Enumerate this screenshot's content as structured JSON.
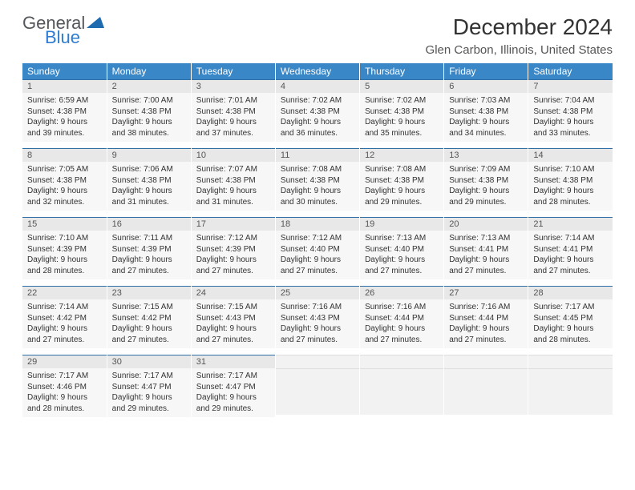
{
  "logo": {
    "word1": "General",
    "word2": "Blue",
    "tri_color": "#1f6bb0"
  },
  "title": "December 2024",
  "subtitle": "Glen Carbon, Illinois, United States",
  "colors": {
    "header_bg": "#3a87c8",
    "header_text": "#ffffff",
    "daynum_bg": "#e8e8e8",
    "daynum_border": "#2e6fa8",
    "daybody_bg": "#f7f7f7",
    "text": "#333333"
  },
  "day_headers": [
    "Sunday",
    "Monday",
    "Tuesday",
    "Wednesday",
    "Thursday",
    "Friday",
    "Saturday"
  ],
  "weeks": [
    [
      {
        "n": "1",
        "sr": "6:59 AM",
        "ss": "4:38 PM",
        "dl": "9 hours and 39 minutes."
      },
      {
        "n": "2",
        "sr": "7:00 AM",
        "ss": "4:38 PM",
        "dl": "9 hours and 38 minutes."
      },
      {
        "n": "3",
        "sr": "7:01 AM",
        "ss": "4:38 PM",
        "dl": "9 hours and 37 minutes."
      },
      {
        "n": "4",
        "sr": "7:02 AM",
        "ss": "4:38 PM",
        "dl": "9 hours and 36 minutes."
      },
      {
        "n": "5",
        "sr": "7:02 AM",
        "ss": "4:38 PM",
        "dl": "9 hours and 35 minutes."
      },
      {
        "n": "6",
        "sr": "7:03 AM",
        "ss": "4:38 PM",
        "dl": "9 hours and 34 minutes."
      },
      {
        "n": "7",
        "sr": "7:04 AM",
        "ss": "4:38 PM",
        "dl": "9 hours and 33 minutes."
      }
    ],
    [
      {
        "n": "8",
        "sr": "7:05 AM",
        "ss": "4:38 PM",
        "dl": "9 hours and 32 minutes."
      },
      {
        "n": "9",
        "sr": "7:06 AM",
        "ss": "4:38 PM",
        "dl": "9 hours and 31 minutes."
      },
      {
        "n": "10",
        "sr": "7:07 AM",
        "ss": "4:38 PM",
        "dl": "9 hours and 31 minutes."
      },
      {
        "n": "11",
        "sr": "7:08 AM",
        "ss": "4:38 PM",
        "dl": "9 hours and 30 minutes."
      },
      {
        "n": "12",
        "sr": "7:08 AM",
        "ss": "4:38 PM",
        "dl": "9 hours and 29 minutes."
      },
      {
        "n": "13",
        "sr": "7:09 AM",
        "ss": "4:38 PM",
        "dl": "9 hours and 29 minutes."
      },
      {
        "n": "14",
        "sr": "7:10 AM",
        "ss": "4:38 PM",
        "dl": "9 hours and 28 minutes."
      }
    ],
    [
      {
        "n": "15",
        "sr": "7:10 AM",
        "ss": "4:39 PM",
        "dl": "9 hours and 28 minutes."
      },
      {
        "n": "16",
        "sr": "7:11 AM",
        "ss": "4:39 PM",
        "dl": "9 hours and 27 minutes."
      },
      {
        "n": "17",
        "sr": "7:12 AM",
        "ss": "4:39 PM",
        "dl": "9 hours and 27 minutes."
      },
      {
        "n": "18",
        "sr": "7:12 AM",
        "ss": "4:40 PM",
        "dl": "9 hours and 27 minutes."
      },
      {
        "n": "19",
        "sr": "7:13 AM",
        "ss": "4:40 PM",
        "dl": "9 hours and 27 minutes."
      },
      {
        "n": "20",
        "sr": "7:13 AM",
        "ss": "4:41 PM",
        "dl": "9 hours and 27 minutes."
      },
      {
        "n": "21",
        "sr": "7:14 AM",
        "ss": "4:41 PM",
        "dl": "9 hours and 27 minutes."
      }
    ],
    [
      {
        "n": "22",
        "sr": "7:14 AM",
        "ss": "4:42 PM",
        "dl": "9 hours and 27 minutes."
      },
      {
        "n": "23",
        "sr": "7:15 AM",
        "ss": "4:42 PM",
        "dl": "9 hours and 27 minutes."
      },
      {
        "n": "24",
        "sr": "7:15 AM",
        "ss": "4:43 PM",
        "dl": "9 hours and 27 minutes."
      },
      {
        "n": "25",
        "sr": "7:16 AM",
        "ss": "4:43 PM",
        "dl": "9 hours and 27 minutes."
      },
      {
        "n": "26",
        "sr": "7:16 AM",
        "ss": "4:44 PM",
        "dl": "9 hours and 27 minutes."
      },
      {
        "n": "27",
        "sr": "7:16 AM",
        "ss": "4:44 PM",
        "dl": "9 hours and 27 minutes."
      },
      {
        "n": "28",
        "sr": "7:17 AM",
        "ss": "4:45 PM",
        "dl": "9 hours and 28 minutes."
      }
    ],
    [
      {
        "n": "29",
        "sr": "7:17 AM",
        "ss": "4:46 PM",
        "dl": "9 hours and 28 minutes."
      },
      {
        "n": "30",
        "sr": "7:17 AM",
        "ss": "4:47 PM",
        "dl": "9 hours and 29 minutes."
      },
      {
        "n": "31",
        "sr": "7:17 AM",
        "ss": "4:47 PM",
        "dl": "9 hours and 29 minutes."
      },
      {
        "empty": true
      },
      {
        "empty": true
      },
      {
        "empty": true
      },
      {
        "empty": true
      }
    ]
  ],
  "labels": {
    "sunrise": "Sunrise: ",
    "sunset": "Sunset: ",
    "daylight": "Daylight: "
  }
}
